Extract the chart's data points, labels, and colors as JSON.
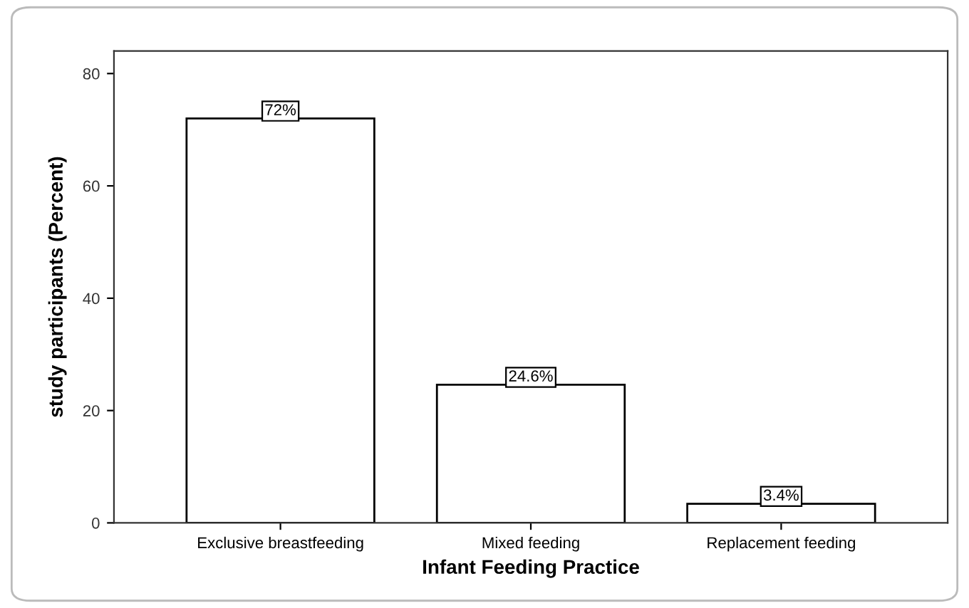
{
  "chart_data": {
    "type": "bar",
    "xlabel": "Infant Feeding Practice",
    "ylabel": "study participants (Percent)",
    "categories": [
      "Exclusive breastfeeding",
      "Mixed feeding",
      "Replacement feeding"
    ],
    "values": [
      72,
      24.6,
      3.4
    ],
    "value_labels": [
      "72%",
      "24.6%",
      "3.4%"
    ],
    "color": "#ffffff",
    "ylim": [
      0,
      84
    ],
    "yticks": [
      0,
      20,
      40,
      60,
      80
    ],
    "grid": false
  }
}
